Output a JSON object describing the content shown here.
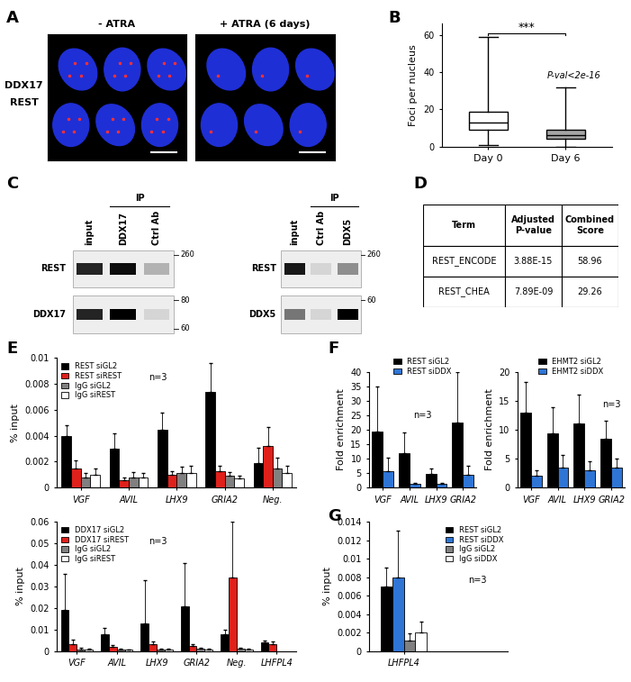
{
  "images": {
    "panel": "A",
    "row_label": [
      "DDX17",
      "REST"
    ],
    "titles": [
      "- ATRA",
      "+ ATRA (6 days)"
    ]
  },
  "blots": {
    "panel": "C",
    "items": [
      {
        "lanes": [
          "input",
          "DDX17",
          "Ctrl Ab"
        ],
        "group_label": "IP",
        "group_lanes": [
          1,
          2
        ],
        "rows": [
          {
            "name": "REST",
            "markers": [
              260
            ],
            "intensity": [
              0.85,
              0.95,
              0.25
            ]
          },
          {
            "name": "DDX17",
            "markers": [
              80,
              60
            ],
            "intensity": [
              0.85,
              1.0,
              0.1
            ]
          }
        ]
      },
      {
        "lanes": [
          "input",
          "Ctrl Ab",
          "DDX5"
        ],
        "group_label": "IP",
        "group_lanes": [
          1,
          2
        ],
        "rows": [
          {
            "name": "REST",
            "markers": [
              260
            ],
            "intensity": [
              0.9,
              0.1,
              0.4
            ]
          },
          {
            "name": "DDX5",
            "markers": [
              60
            ],
            "intensity": [
              0.5,
              0.1,
              1.0
            ]
          }
        ]
      }
    ]
  },
  "table": {
    "panel": "D",
    "header": [
      "Term",
      "Adjusted\nP-value",
      "Combined\nScore"
    ],
    "rows": [
      [
        "REST_ENCODE",
        "3.88E-15",
        "58.96"
      ],
      [
        "REST_CHEA",
        "7.89E-09",
        "29.26"
      ]
    ]
  },
  "chart_data": [
    {
      "type": "box",
      "panel": "B",
      "categories": [
        "Day 0",
        "Day 6"
      ],
      "y_label": "Foci per nucleus",
      "ylim": [
        0,
        66
      ],
      "yticks": [
        0,
        20,
        40,
        60
      ],
      "colors": [
        "#ffffff",
        "#a6a6a6"
      ],
      "stats": [
        {
          "whislo": 1,
          "q1": 9,
          "med": 13,
          "q3": 19,
          "whishi": 59
        },
        {
          "whislo": 0,
          "q1": 4,
          "med": 6,
          "q3": 9,
          "whishi": 32
        }
      ],
      "annotations": [
        "***",
        "P-val<2e-16"
      ]
    },
    {
      "type": "bar",
      "panel": "E",
      "categories": [
        "VGF",
        "AVIL",
        "LHX9",
        "GRIA2",
        "Neg."
      ],
      "y_label": "% input",
      "annotations": [
        "n=3"
      ],
      "legend": "upper left",
      "ylim": [
        0,
        0.01
      ],
      "yticks": [
        0,
        0.002,
        0.004,
        0.006,
        0.008,
        0.01
      ],
      "series": [
        {
          "name": "REST siGL2",
          "color": "#000000",
          "values": [
            0.004,
            0.003,
            0.0045,
            0.0074,
            0.0019
          ],
          "errors": [
            0.0008,
            0.0012,
            0.0013,
            0.0022,
            0.0012
          ]
        },
        {
          "name": "REST siREST",
          "color": "#e0201b",
          "values": [
            0.0015,
            0.0006,
            0.001,
            0.0013,
            0.0032
          ],
          "errors": [
            0.0006,
            0.0002,
            0.0003,
            0.0004,
            0.0015
          ]
        },
        {
          "name": "IgG siGL2",
          "color": "#808080",
          "values": [
            0.0008,
            0.0008,
            0.0011,
            0.0009,
            0.0015
          ],
          "errors": [
            0.0003,
            0.0004,
            0.0005,
            0.0003,
            0.0008
          ]
        },
        {
          "name": "IgG siREST",
          "color": "#ffffff",
          "values": [
            0.001,
            0.0008,
            0.0011,
            0.0007,
            0.0011
          ],
          "errors": [
            0.0005,
            0.0003,
            0.0006,
            0.0002,
            0.0006
          ]
        }
      ]
    },
    {
      "type": "bar",
      "categories": [
        "VGF",
        "AVIL",
        "LHX9",
        "GRIA2",
        "Neg.",
        "LHFPL4"
      ],
      "y_label": "% input",
      "annotations": [
        "n=3"
      ],
      "legend": "upper left",
      "ylim": [
        0,
        0.06
      ],
      "yticks": [
        0,
        0.01,
        0.02,
        0.03,
        0.04,
        0.05,
        0.06
      ],
      "series": [
        {
          "name": "DDX17 siGL2",
          "color": "#000000",
          "values": [
            0.019,
            0.008,
            0.013,
            0.021,
            0.008,
            0.004
          ],
          "errors": [
            0.017,
            0.003,
            0.02,
            0.02,
            0.002,
            0.001
          ]
        },
        {
          "name": "DDX17 siREST",
          "color": "#e0201b",
          "values": [
            0.0035,
            0.002,
            0.0035,
            0.0025,
            0.034,
            0.0035
          ],
          "errors": [
            0.002,
            0.001,
            0.001,
            0.001,
            0.026,
            0.001
          ]
        },
        {
          "name": "IgG siGL2",
          "color": "#808080",
          "values": [
            0.001,
            0.0008,
            0.001,
            0.0012,
            0.0012,
            null
          ],
          "errors": [
            0.0005,
            0.0003,
            0.0004,
            0.0005,
            0.0005,
            null
          ]
        },
        {
          "name": "IgG siREST",
          "color": "#ffffff",
          "values": [
            0.0008,
            0.0006,
            0.0008,
            0.0008,
            0.001,
            null
          ],
          "errors": [
            0.0003,
            0.0002,
            0.0003,
            0.0003,
            0.0003,
            null
          ]
        }
      ]
    },
    {
      "type": "bar",
      "panel": "F",
      "categories": [
        "VGF",
        "AVIL",
        "LHX9",
        "GRIA2"
      ],
      "y_label": "Fold enrichment",
      "annotations": [
        "n=3"
      ],
      "legend": "upper center",
      "ylim": [
        0,
        40
      ],
      "yticks": [
        0,
        5,
        10,
        15,
        20,
        25,
        30,
        35,
        40
      ],
      "series": [
        {
          "name": "REST siGL2",
          "color": "#000000",
          "values": [
            19.5,
            12,
            4.8,
            22.5
          ],
          "errors": [
            15.5,
            7,
            1.7,
            17.5
          ]
        },
        {
          "name": "REST siDDX",
          "color": "#2e75d6",
          "values": [
            5.8,
            1.2,
            1.4,
            4.3
          ],
          "errors": [
            4.5,
            0.4,
            0.3,
            3.3
          ]
        }
      ]
    },
    {
      "type": "bar",
      "categories": [
        "VGF",
        "AVIL",
        "LHX9",
        "GRIA2"
      ],
      "y_label": "Fold enrichment",
      "annotations": [
        "n=3"
      ],
      "legend": "upper center",
      "ylim": [
        0,
        20
      ],
      "yticks": [
        0,
        5,
        10,
        15,
        20
      ],
      "series": [
        {
          "name": "EHMT2 siGL2",
          "color": "#000000",
          "values": [
            13,
            9.3,
            11,
            8.4
          ],
          "errors": [
            5.3,
            4.5,
            5,
            3.2
          ]
        },
        {
          "name": "EHMT2 siDDX",
          "color": "#2e75d6",
          "values": [
            2.1,
            3.4,
            3,
            3.4
          ],
          "errors": [
            0.9,
            2.2,
            1.5,
            1.6
          ]
        }
      ]
    },
    {
      "type": "bar",
      "panel": "G",
      "categories": [
        "LHFPL4"
      ],
      "y_label": "% input",
      "annotations": [
        "n=3"
      ],
      "legend": "upper right",
      "ylim": [
        0,
        0.014
      ],
      "yticks": [
        0,
        0.002,
        0.004,
        0.006,
        0.008,
        0.01,
        0.012,
        0.014
      ],
      "series": [
        {
          "name": "REST siGL2",
          "color": "#000000",
          "values": [
            0.007
          ],
          "errors": [
            0.002
          ]
        },
        {
          "name": "REST siDDX",
          "color": "#2e75d6",
          "values": [
            0.008
          ],
          "errors": [
            0.005
          ]
        },
        {
          "name": "IgG siGL2",
          "color": "#808080",
          "values": [
            0.0012
          ],
          "errors": [
            0.0007
          ]
        },
        {
          "name": "IgG siDDX",
          "color": "#ffffff",
          "values": [
            0.002
          ],
          "errors": [
            0.0012
          ]
        }
      ]
    }
  ]
}
